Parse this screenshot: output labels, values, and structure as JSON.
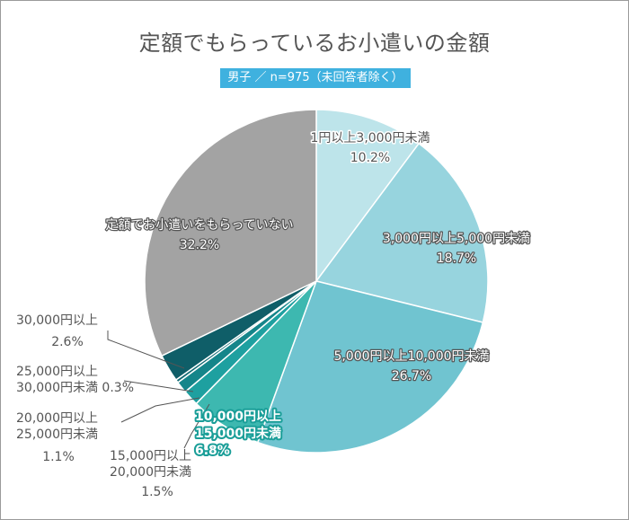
{
  "chart_data": {
    "type": "pie",
    "title": "定額でもらっているお小遣いの金額",
    "subtitle": "男子 ／ n=975（未回答者除く）",
    "slices": [
      {
        "label_lines": [
          "1円以上3,000円未満"
        ],
        "value": 10.2,
        "value_label": "10.2%",
        "color": "#bde4ea"
      },
      {
        "label_lines": [
          "3,000円以上5,000円未満"
        ],
        "value": 18.7,
        "value_label": "18.7%",
        "color": "#97d4de"
      },
      {
        "label_lines": [
          "5,000円以上10,000円未満"
        ],
        "value": 26.7,
        "value_label": "26.7%",
        "color": "#70c4d0"
      },
      {
        "label_lines": [
          "10,000円以上",
          "15,000円未満"
        ],
        "value": 6.8,
        "value_label": "6.8%",
        "color": "#3db8b0"
      },
      {
        "label_lines": [
          "15,000円以上",
          "20,000円未満"
        ],
        "value": 1.5,
        "value_label": "1.5%",
        "color": "#1ea0a0"
      },
      {
        "label_lines": [
          "20,000円以上",
          "25,000円未満"
        ],
        "value": 1.1,
        "value_label": "1.1%",
        "color": "#15858a"
      },
      {
        "label_lines": [
          "25,000円以上",
          "30,000円未満"
        ],
        "value": 0.3,
        "value_label": "0.3%",
        "color": "#126a73"
      },
      {
        "label_lines": [
          "30,000円以上"
        ],
        "value": 2.6,
        "value_label": "2.6%",
        "color": "#0f5e68"
      },
      {
        "label_lines": [
          "定額でお小遣いをもらっていない"
        ],
        "value": 32.2,
        "value_label": "32.2%",
        "color": "#a3a3a3"
      }
    ]
  }
}
